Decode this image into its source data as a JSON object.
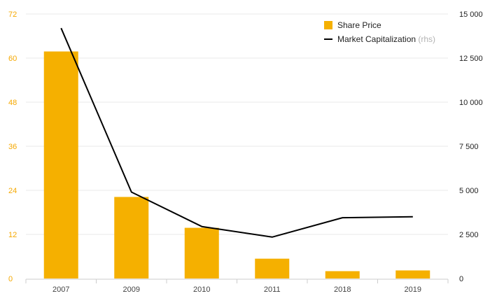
{
  "chart_data": {
    "type": "bar+line",
    "categories": [
      "2007",
      "2009",
      "2010",
      "2011",
      "2018",
      "2019"
    ],
    "series": [
      {
        "name": "Share Price",
        "type": "bar",
        "axis": "left",
        "color": "#f5b000",
        "values": [
          61.8,
          22.2,
          13.8,
          5.4,
          2.0,
          2.2
        ]
      },
      {
        "name": "Market Capitalization",
        "legend_suffix": "(rhs)",
        "type": "line",
        "axis": "right",
        "color": "#000000",
        "values": [
          14200,
          4900,
          2950,
          2350,
          3450,
          3500
        ]
      }
    ],
    "y_left": {
      "lim": [
        0,
        72
      ],
      "ticks": [
        0,
        12,
        24,
        36,
        48,
        60,
        72
      ],
      "tick_labels": [
        "0",
        "12",
        "24",
        "36",
        "48",
        "60",
        "72"
      ],
      "color": "#f5a800"
    },
    "y_right": {
      "lim": [
        0,
        15000
      ],
      "ticks": [
        0,
        2500,
        5000,
        7500,
        10000,
        12500,
        15000
      ],
      "tick_labels": [
        "0",
        "2 500",
        "5 000",
        "7 500",
        "10 000",
        "12 500",
        "15 000"
      ]
    },
    "grid": true,
    "legend_position": "top-right",
    "title": "",
    "xlabel": "",
    "ylabel": ""
  }
}
